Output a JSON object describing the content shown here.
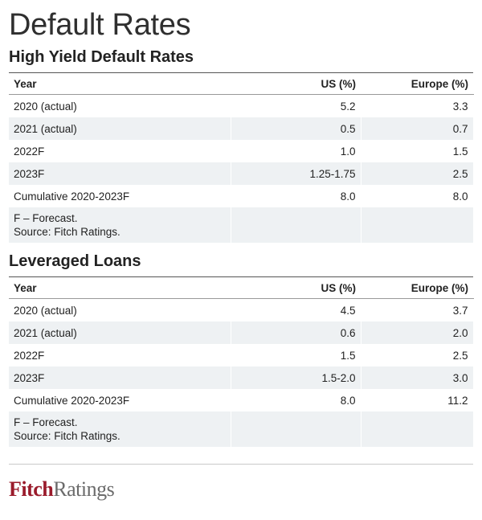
{
  "title": "Default Rates",
  "columns": {
    "year": "Year",
    "us": "US (%)",
    "europe": "Europe (%)"
  },
  "high_yield": {
    "title": "High Yield Default Rates",
    "rows": [
      {
        "year": "2020 (actual)",
        "us": "5.2",
        "europe": "3.3"
      },
      {
        "year": "2021 (actual)",
        "us": "0.5",
        "europe": "0.7"
      },
      {
        "year": "2022F",
        "us": "1.0",
        "europe": "1.5"
      },
      {
        "year": "2023F",
        "us": "1.25-1.75",
        "europe": "2.5"
      },
      {
        "year": "Cumulative 2020-2023F",
        "us": "8.0",
        "europe": "8.0"
      }
    ],
    "note_forecast": "F – Forecast.",
    "note_source": "Source: Fitch Ratings."
  },
  "leveraged_loans": {
    "title": "Leveraged Loans",
    "rows": [
      {
        "year": "2020 (actual)",
        "us": "4.5",
        "europe": "3.7"
      },
      {
        "year": "2021 (actual)",
        "us": "0.6",
        "europe": "2.0"
      },
      {
        "year": "2022F",
        "us": "1.5",
        "europe": "2.5"
      },
      {
        "year": "2023F",
        "us": "1.5-2.0",
        "europe": "3.0"
      },
      {
        "year": "Cumulative 2020-2023F",
        "us": "8.0",
        "europe": "11.2"
      }
    ],
    "note_forecast": "F – Forecast.",
    "note_source": "Source: Fitch Ratings."
  },
  "logo": {
    "part1": "Fitch",
    "part2": "Ratings",
    "color": "#9a1b2b"
  }
}
